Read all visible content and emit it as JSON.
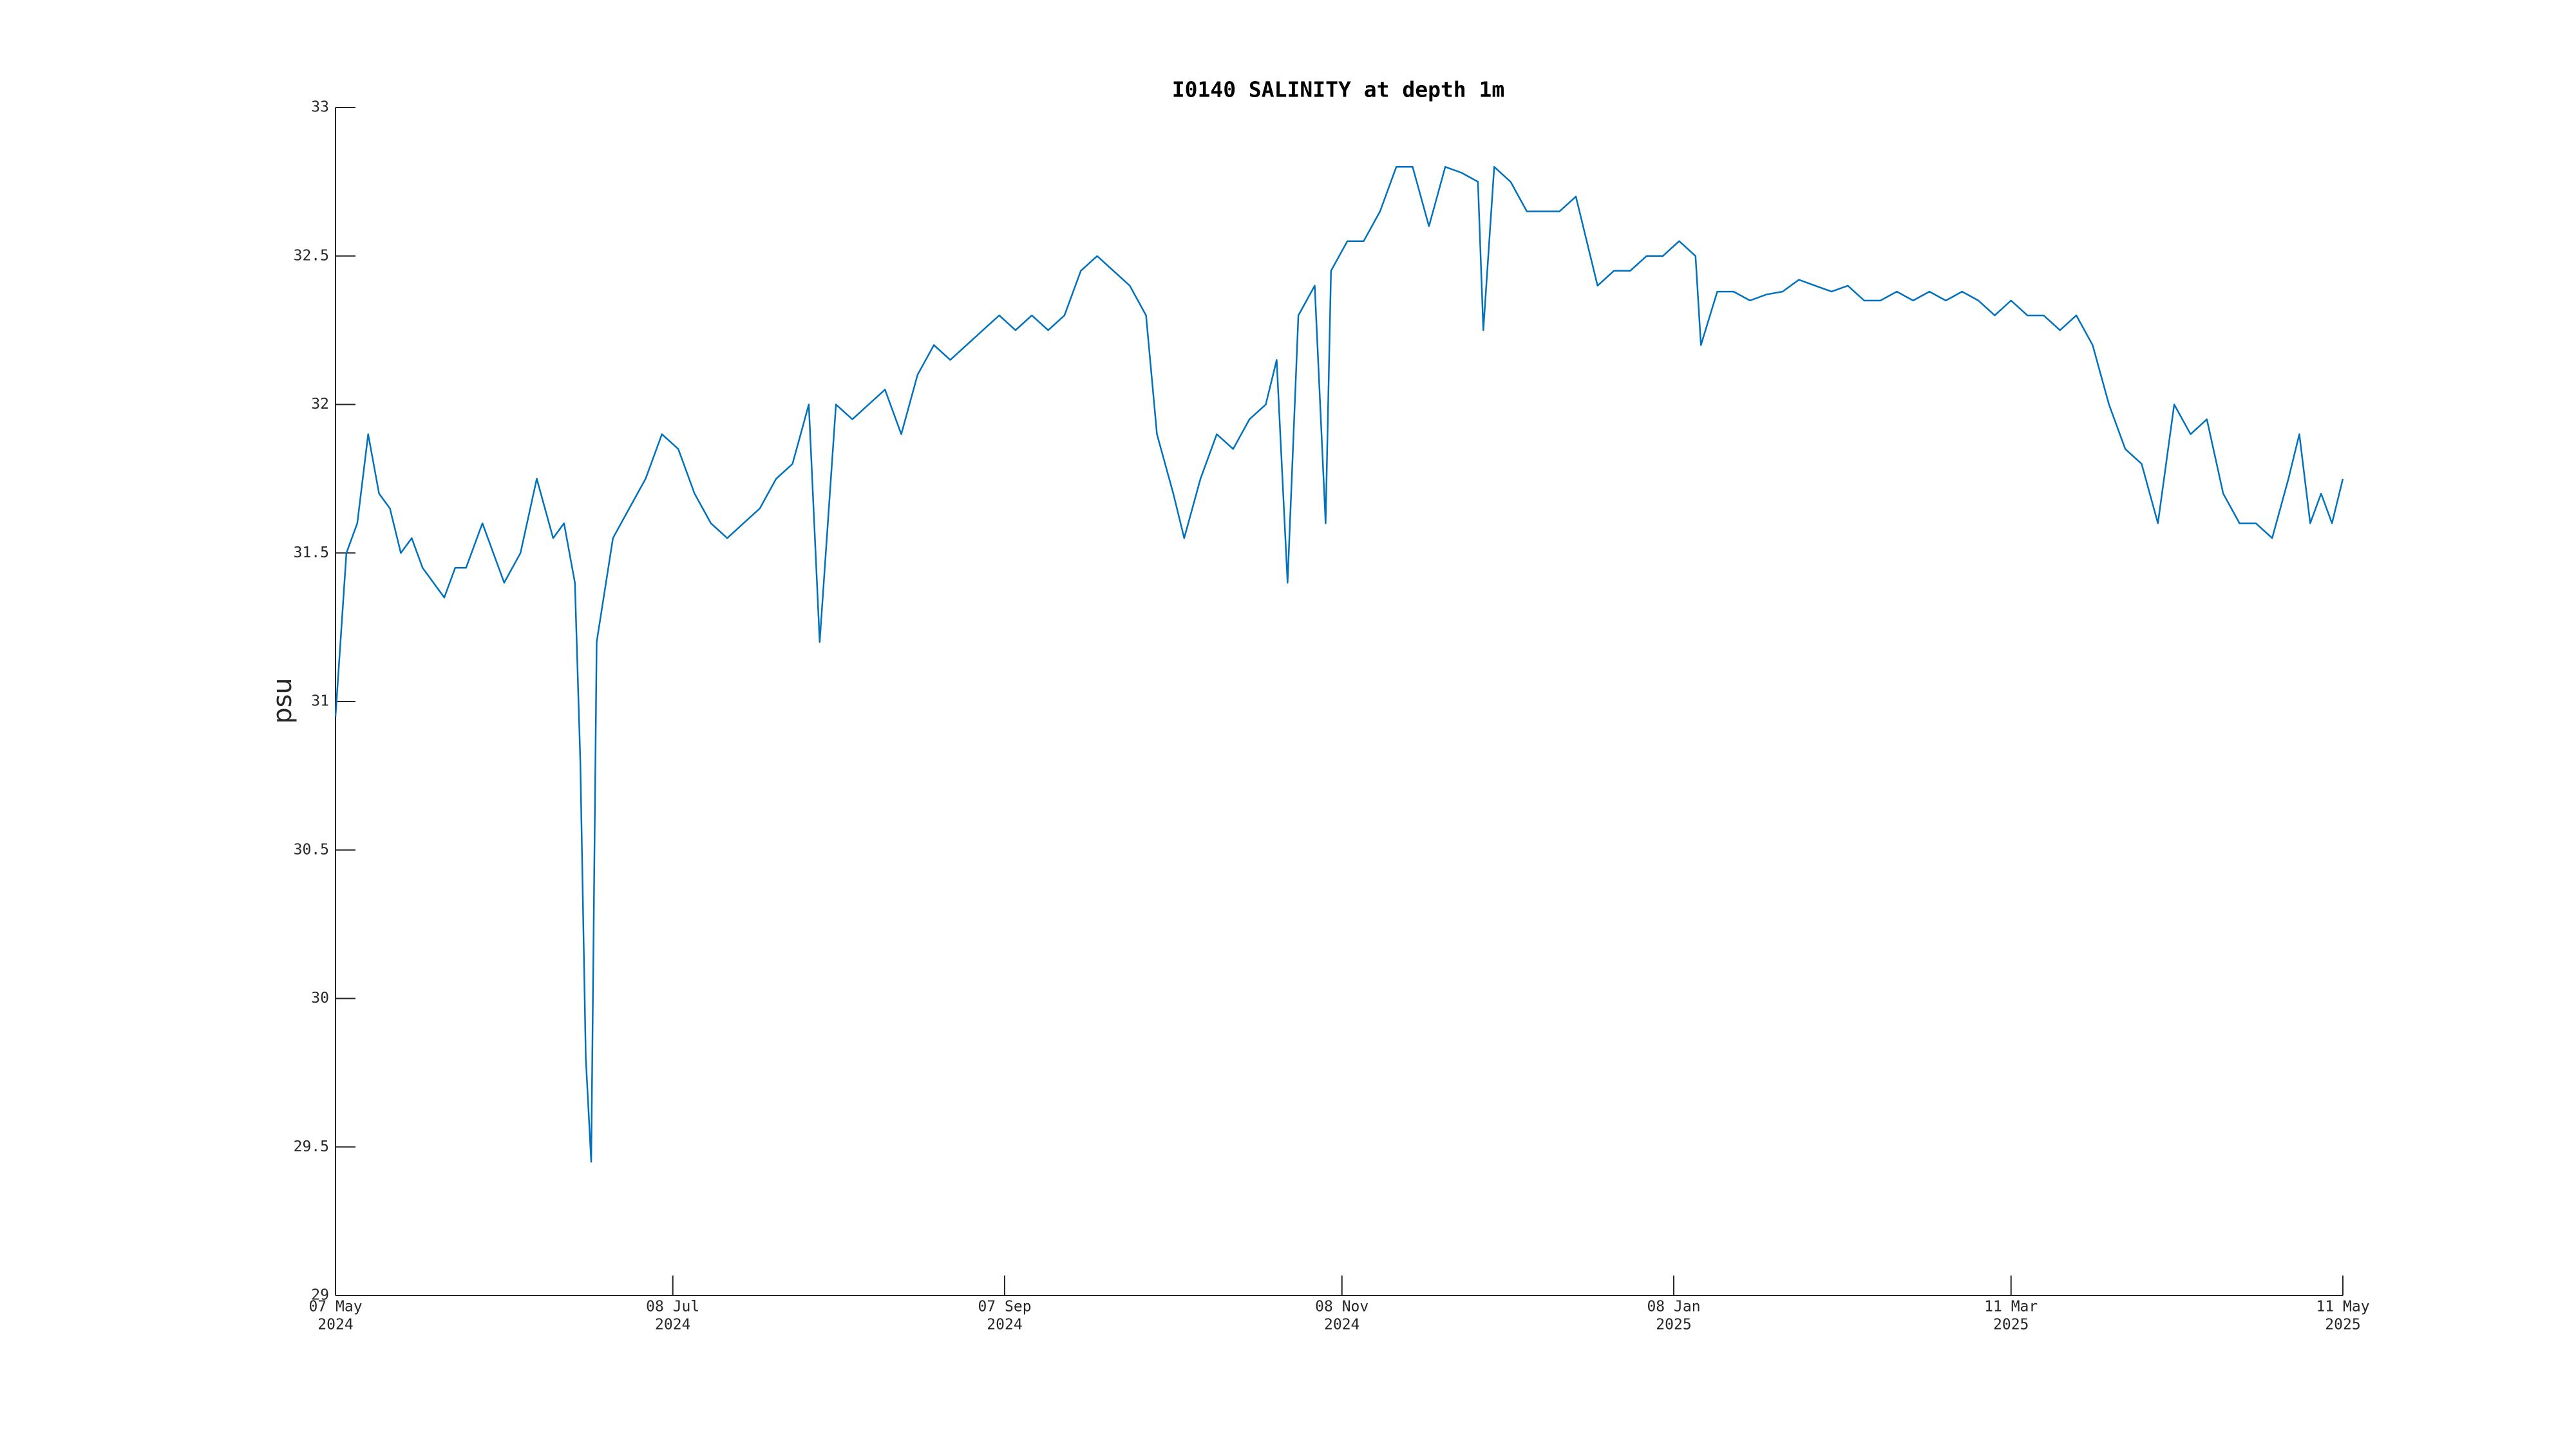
{
  "chart_data": {
    "type": "line",
    "title": "I0140 SALINITY at depth 1m",
    "y_label": "psu",
    "x": [
      "2024-05-07",
      "2024-05-09",
      "2024-05-11",
      "2024-05-13",
      "2024-05-15",
      "2024-05-17",
      "2024-05-19",
      "2024-05-21",
      "2024-05-23",
      "2024-05-25",
      "2024-05-27",
      "2024-05-29",
      "2024-05-31",
      "2024-06-03",
      "2024-06-07",
      "2024-06-10",
      "2024-06-13",
      "2024-06-16",
      "2024-06-18",
      "2024-06-20",
      "2024-06-21",
      "2024-06-22",
      "2024-06-23",
      "2024-06-24",
      "2024-06-27",
      "2024-06-30",
      "2024-07-03",
      "2024-07-06",
      "2024-07-09",
      "2024-07-12",
      "2024-07-15",
      "2024-07-18",
      "2024-07-21",
      "2024-07-24",
      "2024-07-27",
      "2024-07-30",
      "2024-08-02",
      "2024-08-04",
      "2024-08-07",
      "2024-08-10",
      "2024-08-13",
      "2024-08-16",
      "2024-08-19",
      "2024-08-22",
      "2024-08-25",
      "2024-08-28",
      "2024-08-31",
      "2024-09-03",
      "2024-09-06",
      "2024-09-09",
      "2024-09-12",
      "2024-09-15",
      "2024-09-18",
      "2024-09-21",
      "2024-09-24",
      "2024-09-27",
      "2024-09-30",
      "2024-10-03",
      "2024-10-05",
      "2024-10-08",
      "2024-10-10",
      "2024-10-13",
      "2024-10-16",
      "2024-10-19",
      "2024-10-22",
      "2024-10-25",
      "2024-10-27",
      "2024-10-29",
      "2024-10-31",
      "2024-11-03",
      "2024-11-05",
      "2024-11-06",
      "2024-11-09",
      "2024-11-12",
      "2024-11-15",
      "2024-11-18",
      "2024-11-21",
      "2024-11-24",
      "2024-11-27",
      "2024-11-30",
      "2024-12-03",
      "2024-12-04",
      "2024-12-06",
      "2024-12-09",
      "2024-12-12",
      "2024-12-15",
      "2024-12-18",
      "2024-12-21",
      "2024-12-25",
      "2024-12-28",
      "2024-12-31",
      "2025-01-03",
      "2025-01-06",
      "2025-01-09",
      "2025-01-12",
      "2025-01-13",
      "2025-01-16",
      "2025-01-19",
      "2025-01-22",
      "2025-01-25",
      "2025-01-28",
      "2025-01-31",
      "2025-02-03",
      "2025-02-06",
      "2025-02-09",
      "2025-02-12",
      "2025-02-15",
      "2025-02-18",
      "2025-02-21",
      "2025-02-24",
      "2025-02-27",
      "2025-03-02",
      "2025-03-05",
      "2025-03-08",
      "2025-03-11",
      "2025-03-14",
      "2025-03-17",
      "2025-03-20",
      "2025-03-23",
      "2025-03-26",
      "2025-03-29",
      "2025-04-01",
      "2025-04-04",
      "2025-04-07",
      "2025-04-10",
      "2025-04-13",
      "2025-04-16",
      "2025-04-19",
      "2025-04-22",
      "2025-04-25",
      "2025-04-28",
      "2025-05-01",
      "2025-05-03",
      "2025-05-05",
      "2025-05-07",
      "2025-05-09",
      "2025-05-11"
    ],
    "series": [
      {
        "name": "salinity",
        "color": "#0072bd",
        "values": [
          30.95,
          31.5,
          31.6,
          31.9,
          31.7,
          31.65,
          31.5,
          31.55,
          31.45,
          31.4,
          31.35,
          31.45,
          31.45,
          31.6,
          31.4,
          31.5,
          31.75,
          31.55,
          31.6,
          31.4,
          30.8,
          29.8,
          29.45,
          31.2,
          31.55,
          31.65,
          31.75,
          31.9,
          31.85,
          31.7,
          31.6,
          31.55,
          31.6,
          31.65,
          31.75,
          31.8,
          32.0,
          31.2,
          32.0,
          31.95,
          32.0,
          32.05,
          31.9,
          32.1,
          32.2,
          32.15,
          32.2,
          32.25,
          32.3,
          32.25,
          32.3,
          32.25,
          32.3,
          32.45,
          32.5,
          32.45,
          32.4,
          32.3,
          31.9,
          31.7,
          31.55,
          31.75,
          31.9,
          31.85,
          31.95,
          32.0,
          32.15,
          31.4,
          32.3,
          32.4,
          31.6,
          32.45,
          32.55,
          32.55,
          32.65,
          32.8,
          32.8,
          32.6,
          32.8,
          32.78,
          32.75,
          32.25,
          32.8,
          32.75,
          32.65,
          32.65,
          32.65,
          32.7,
          32.4,
          32.45,
          32.45,
          32.5,
          32.5,
          32.55,
          32.5,
          32.2,
          32.38,
          32.38,
          32.35,
          32.37,
          32.38,
          32.42,
          32.4,
          32.38,
          32.4,
          32.35,
          32.35,
          32.38,
          32.35,
          32.38,
          32.35,
          32.38,
          32.35,
          32.3,
          32.35,
          32.3,
          32.3,
          32.25,
          32.3,
          32.2,
          32.0,
          31.85,
          31.8,
          31.6,
          32.0,
          31.9,
          31.95,
          31.7,
          31.6,
          31.6,
          31.55,
          31.75,
          31.9,
          31.6,
          31.7,
          31.6,
          31.75
        ]
      }
    ],
    "xlim": [
      "2024-05-07",
      "2025-05-11"
    ],
    "xticks": [
      {
        "value": "2024-05-07",
        "label": [
          "07 May",
          "2024"
        ]
      },
      {
        "value": "2024-07-08",
        "label": [
          "08 Jul",
          "2024"
        ]
      },
      {
        "value": "2024-09-07",
        "label": [
          "07 Sep",
          "2024"
        ]
      },
      {
        "value": "2024-11-08",
        "label": [
          "08 Nov",
          "2024"
        ]
      },
      {
        "value": "2025-01-08",
        "label": [
          "08 Jan",
          "2025"
        ]
      },
      {
        "value": "2025-03-11",
        "label": [
          "11 Mar",
          "2025"
        ]
      },
      {
        "value": "2025-05-11",
        "label": [
          "11 May",
          "2025"
        ]
      }
    ],
    "ylim": [
      29,
      33
    ],
    "yticks": [
      29,
      29.5,
      30,
      30.5,
      31,
      31.5,
      32,
      32.5,
      33
    ],
    "grid": false
  }
}
